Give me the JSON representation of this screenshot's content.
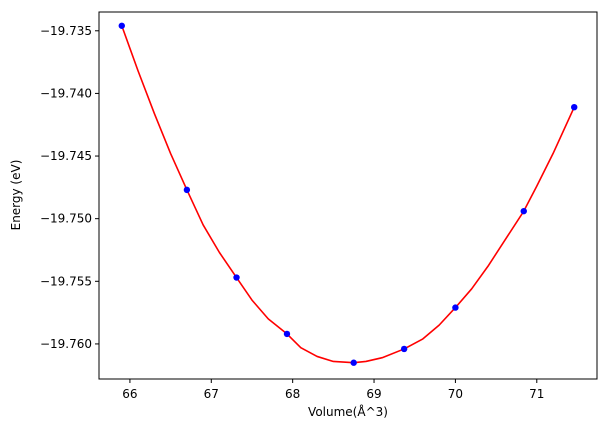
{
  "chart_data": {
    "type": "scatter",
    "title": "",
    "xlabel": "Volume(Å^3)",
    "ylabel": "Energy (eV)",
    "xlim": [
      65.62,
      71.74
    ],
    "ylim": [
      -19.7628,
      -19.7335
    ],
    "x_ticks": [
      66,
      67,
      68,
      69,
      70,
      71
    ],
    "y_ticks": [
      -19.76,
      -19.755,
      -19.75,
      -19.745,
      -19.74,
      -19.735
    ],
    "y_tick_labels": [
      "−19.760",
      "−19.755",
      "−19.750",
      "−19.745",
      "−19.740",
      "−19.735"
    ],
    "grid": false,
    "series": [
      {
        "kind": "points",
        "color": "#0000ff",
        "x": [
          65.9,
          66.7,
          67.31,
          67.93,
          68.75,
          69.37,
          70.0,
          70.84,
          71.46
        ],
        "y": [
          -19.7346,
          -19.7477,
          -19.7547,
          -19.7592,
          -19.7615,
          -19.7604,
          -19.7571,
          -19.7494,
          -19.7411
        ]
      },
      {
        "kind": "fit-line",
        "color": "#ff0000",
        "x": [
          65.9,
          66.1,
          66.3,
          66.5,
          66.7,
          66.9,
          67.1,
          67.31,
          67.5,
          67.7,
          67.93,
          68.1,
          68.3,
          68.5,
          68.75,
          68.9,
          69.1,
          69.37,
          69.6,
          69.8,
          70.0,
          70.2,
          70.4,
          70.6,
          70.84,
          71.0,
          71.2,
          71.46
        ],
        "y": [
          -19.7346,
          -19.7382,
          -19.7416,
          -19.7448,
          -19.7477,
          -19.7505,
          -19.7527,
          -19.7547,
          -19.7565,
          -19.758,
          -19.7592,
          -19.7603,
          -19.761,
          -19.7614,
          -19.7615,
          -19.7614,
          -19.7611,
          -19.7604,
          -19.7596,
          -19.7585,
          -19.7571,
          -19.7556,
          -19.7538,
          -19.7518,
          -19.7494,
          -19.7474,
          -19.7448,
          -19.7411
        ]
      }
    ]
  }
}
